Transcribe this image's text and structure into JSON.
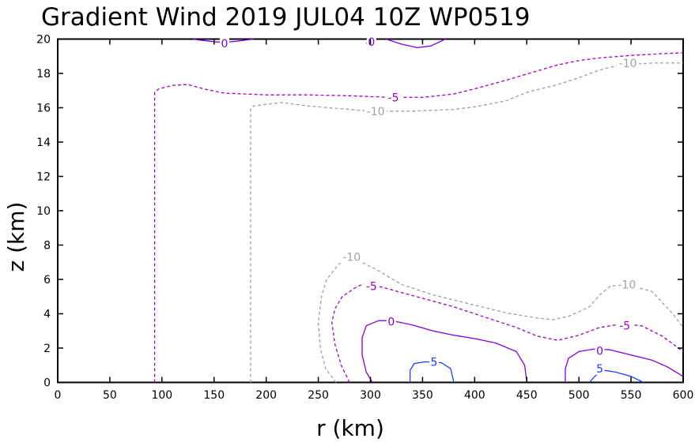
{
  "chart_data": {
    "type": "contour",
    "title": "Gradient Wind 2019 JUL04 10Z  WP0519",
    "xlabel": "r (km)",
    "ylabel": "z (km)",
    "xlim": [
      0,
      600
    ],
    "ylim": [
      0,
      20
    ],
    "x_ticks": [
      "0",
      "50",
      "100",
      "150",
      "200",
      "250",
      "300",
      "350",
      "400",
      "450",
      "500",
      "550",
      "600"
    ],
    "y_ticks": [
      "0",
      "2",
      "4",
      "6",
      "8",
      "10",
      "12",
      "14",
      "16",
      "18",
      "20"
    ],
    "grid": false,
    "colors": {
      "neg10": "#a0a0a0",
      "neg5": "#a000c8",
      "zero": "#8200dc",
      "pos5": "#1e3cff"
    },
    "contours": [
      {
        "level": -10,
        "label": "-10",
        "style": "dashed",
        "color": "neg10",
        "paths": [
          {
            "points": [
              [
                185,
                0
              ],
              [
                185,
                15.9
              ],
              [
                188,
                16.1
              ],
              [
                200,
                16.2
              ],
              [
                215,
                16.3
              ],
              [
                240,
                16.1
              ],
              [
                270,
                15.95
              ],
              [
                300,
                15.8
              ],
              [
                340,
                15.8
              ],
              [
                380,
                15.9
              ],
              [
                400,
                16.05
              ],
              [
                430,
                16.4
              ],
              [
                450,
                16.9
              ],
              [
                480,
                17.35
              ],
              [
                500,
                17.75
              ],
              [
                520,
                18.2
              ],
              [
                540,
                18.5
              ],
              [
                570,
                18.6
              ],
              [
                600,
                18.6
              ]
            ],
            "labels": [
              {
                "x": 305,
                "y": 15.8,
                "text": "-10"
              },
              {
                "x": 547,
                "y": 18.6,
                "text": "-10"
              }
            ]
          },
          {
            "points": [
              [
                267,
                0
              ],
              [
                257,
                0.8
              ],
              [
                252,
                2
              ],
              [
                250,
                3.5
              ],
              [
                253,
                5
              ],
              [
                258,
                6
              ],
              [
                270,
                6.9
              ],
              [
                282,
                7.3
              ],
              [
                305,
                6.6
              ],
              [
                330,
                5.7
              ],
              [
                360,
                5.1
              ],
              [
                400,
                4.5
              ],
              [
                430,
                4.05
              ],
              [
                460,
                3.75
              ],
              [
                475,
                3.65
              ],
              [
                490,
                3.85
              ],
              [
                510,
                4.4
              ],
              [
                520,
                5.1
              ],
              [
                530,
                5.6
              ],
              [
                545,
                5.7
              ],
              [
                570,
                5.3
              ],
              [
                590,
                4
              ],
              [
                600,
                3.2
              ]
            ],
            "labels": [
              {
                "x": 282,
                "y": 7.3,
                "text": "-10"
              },
              {
                "x": 546,
                "y": 5.7,
                "text": "-10"
              }
            ]
          }
        ]
      },
      {
        "level": -5,
        "label": "-5",
        "style": "dashed",
        "color": "neg5",
        "paths": [
          {
            "points": [
              [
                93,
                0
              ],
              [
                93,
                16.9
              ],
              [
                97,
                17.1
              ],
              [
                110,
                17.3
              ],
              [
                125,
                17.35
              ],
              [
                140,
                17.1
              ],
              [
                160,
                16.85
              ],
              [
                200,
                16.75
              ],
              [
                240,
                16.75
              ],
              [
                280,
                16.7
              ],
              [
                320,
                16.6
              ],
              [
                350,
                16.6
              ],
              [
                380,
                16.8
              ],
              [
                400,
                17.1
              ],
              [
                430,
                17.6
              ],
              [
                455,
                18.05
              ],
              [
                480,
                18.5
              ],
              [
                500,
                18.75
              ],
              [
                520,
                18.9
              ],
              [
                550,
                19.05
              ],
              [
                580,
                19.15
              ],
              [
                600,
                19.2
              ]
            ],
            "labels": [
              {
                "x": 322,
                "y": 16.6,
                "text": "-5"
              }
            ]
          },
          {
            "points": [
              [
                280,
                0
              ],
              [
                272,
                1
              ],
              [
                266,
                2.2
              ],
              [
                263,
                3.5
              ],
              [
                266,
                4.3
              ],
              [
                273,
                5
              ],
              [
                285,
                5.5
              ],
              [
                295,
                5.8
              ],
              [
                320,
                5.4
              ],
              [
                350,
                4.9
              ],
              [
                380,
                4.4
              ],
              [
                410,
                3.8
              ],
              [
                440,
                3.2
              ],
              [
                460,
                2.7
              ],
              [
                480,
                2.45
              ],
              [
                500,
                2.75
              ],
              [
                520,
                3.2
              ],
              [
                540,
                3.4
              ],
              [
                560,
                3.3
              ],
              [
                580,
                2.7
              ],
              [
                600,
                1.8
              ]
            ],
            "labels": [
              {
                "x": 301,
                "y": 5.6,
                "text": "-5"
              },
              {
                "x": 544,
                "y": 3.3,
                "text": "-5"
              }
            ]
          }
        ]
      },
      {
        "level": 0,
        "label": "0",
        "style": "solid",
        "color": "zero",
        "paths": [
          {
            "points": [
              [
                130,
                20
              ],
              [
                135,
                19.95
              ],
              [
                150,
                19.85
              ],
              [
                160,
                19.8
              ],
              [
                175,
                19.9
              ],
              [
                188,
                20
              ]
            ],
            "labels": [
              {
                "x": 160,
                "y": 19.75,
                "text": "0"
              }
            ]
          },
          {
            "points": [
              [
                296,
                19.75
              ],
              [
                300,
                19.9
              ],
              [
                305,
                20
              ]
            ],
            "labels": [
              {
                "x": 301,
                "y": 19.85,
                "text": "0"
              }
            ]
          },
          {
            "points": [
              [
                315,
                20
              ],
              [
                330,
                19.7
              ],
              [
                345,
                19.5
              ],
              [
                358,
                19.6
              ],
              [
                372,
                20
              ]
            ],
            "labels": []
          },
          {
            "points": [
              [
                302,
                0
              ],
              [
                296,
                0.6
              ],
              [
                292,
                1.6
              ],
              [
                292,
                2.6
              ],
              [
                296,
                3.3
              ],
              [
                308,
                3.6
              ],
              [
                320,
                3.6
              ],
              [
                340,
                3.35
              ],
              [
                360,
                3.0
              ],
              [
                380,
                2.75
              ],
              [
                400,
                2.55
              ],
              [
                420,
                2.3
              ],
              [
                440,
                1.8
              ],
              [
                448,
                1.0
              ],
              [
                450,
                0
              ]
            ],
            "labels": [
              {
                "x": 320,
                "y": 3.55,
                "text": "0"
              }
            ]
          },
          {
            "points": [
              [
                487,
                0
              ],
              [
                487,
                0.8
              ],
              [
                490,
                1.4
              ],
              [
                500,
                1.8
              ],
              [
                515,
                1.95
              ],
              [
                530,
                1.9
              ],
              [
                550,
                1.6
              ],
              [
                570,
                1.3
              ],
              [
                585,
                0.9
              ],
              [
                600,
                0.35
              ]
            ],
            "labels": [
              {
                "x": 520,
                "y": 1.85,
                "text": "0"
              }
            ]
          }
        ]
      },
      {
        "level": 5,
        "label": "5",
        "style": "solid",
        "color": "pos5",
        "paths": [
          {
            "points": [
              [
                338,
                0
              ],
              [
                338,
                0.7
              ],
              [
                342,
                1.1
              ],
              [
                352,
                1.2
              ],
              [
                368,
                1.15
              ],
              [
                377,
                0.8
              ],
              [
                380,
                0
              ]
            ],
            "labels": [
              {
                "x": 361,
                "y": 1.2,
                "text": "5"
              }
            ]
          },
          {
            "points": [
              [
                510,
                0
              ],
              [
                516,
                0.4
              ],
              [
                525,
                0.7
              ],
              [
                535,
                0.6
              ],
              [
                550,
                0.35
              ],
              [
                562,
                0
              ]
            ],
            "labels": [
              {
                "x": 520,
                "y": 0.8,
                "text": "5"
              }
            ]
          }
        ]
      }
    ]
  }
}
